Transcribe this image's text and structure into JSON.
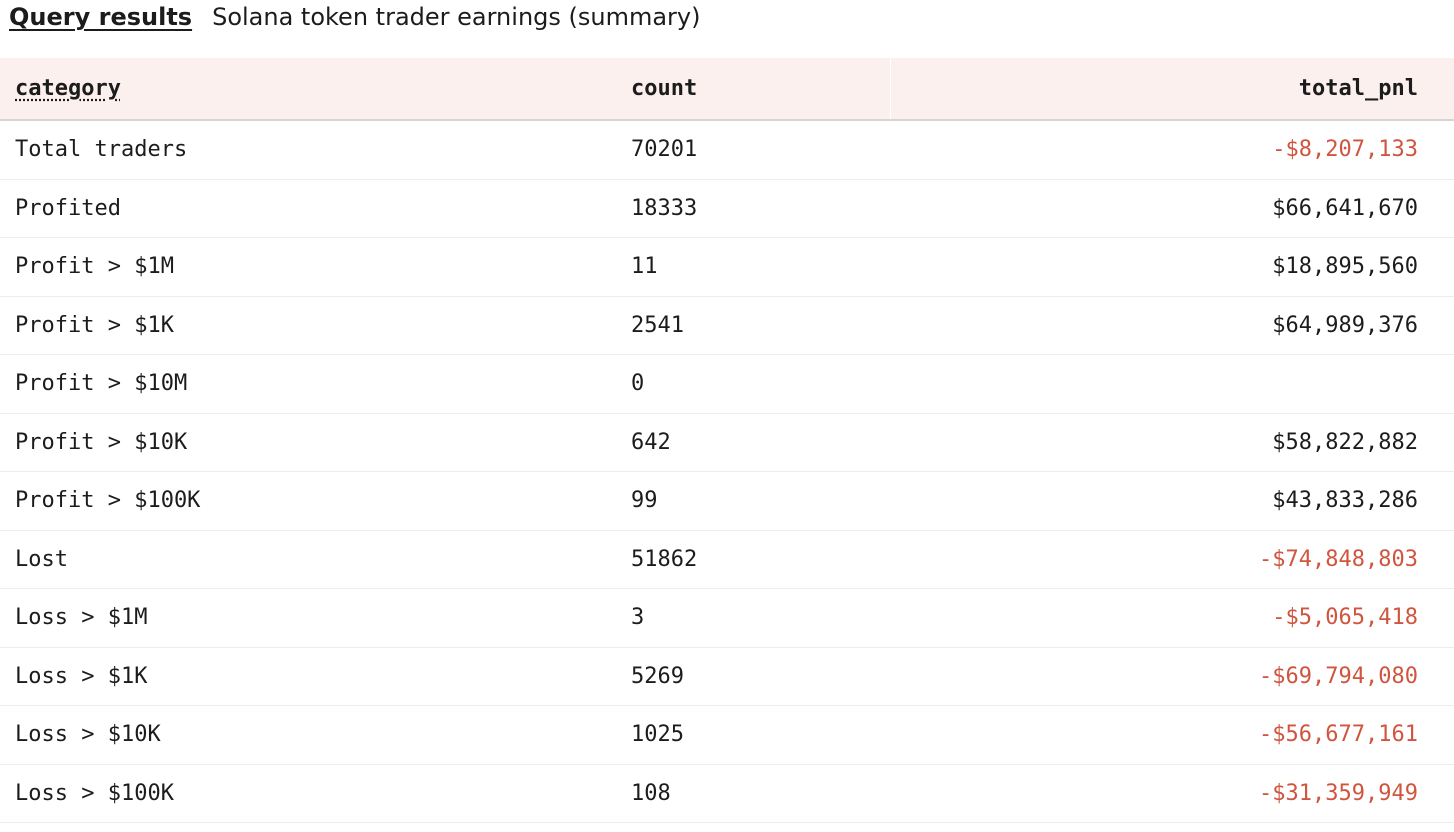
{
  "header": {
    "tab_label": "Query results",
    "title": "Solana token trader earnings (summary)"
  },
  "table": {
    "columns": [
      "category",
      "count",
      "total_pnl"
    ],
    "rows": [
      {
        "category": "Total traders",
        "count": "70201",
        "total_pnl": "-$8,207,133",
        "negative": true
      },
      {
        "category": "Profited",
        "count": "18333",
        "total_pnl": "$66,641,670",
        "negative": false
      },
      {
        "category": "Profit > $1M",
        "count": "11",
        "total_pnl": "$18,895,560",
        "negative": false
      },
      {
        "category": "Profit > $1K",
        "count": "2541",
        "total_pnl": "$64,989,376",
        "negative": false
      },
      {
        "category": "Profit > $10M",
        "count": "0",
        "total_pnl": "",
        "negative": false
      },
      {
        "category": "Profit > $10K",
        "count": "642",
        "total_pnl": "$58,822,882",
        "negative": false
      },
      {
        "category": "Profit > $100K",
        "count": "99",
        "total_pnl": "$43,833,286",
        "negative": false
      },
      {
        "category": "Lost",
        "count": "51862",
        "total_pnl": "-$74,848,803",
        "negative": true
      },
      {
        "category": "Loss > $1M",
        "count": "3",
        "total_pnl": "-$5,065,418",
        "negative": true
      },
      {
        "category": "Loss > $1K",
        "count": "5269",
        "total_pnl": "-$69,794,080",
        "negative": true
      },
      {
        "category": "Loss > $10K",
        "count": "1025",
        "total_pnl": "-$56,677,161",
        "negative": true
      },
      {
        "category": "Loss > $100K",
        "count": "108",
        "total_pnl": "-$31,359,949",
        "negative": true
      }
    ]
  },
  "colors": {
    "header_bg": "#fcf0ee",
    "negative": "#d0553f",
    "text": "#1c1c1c"
  }
}
